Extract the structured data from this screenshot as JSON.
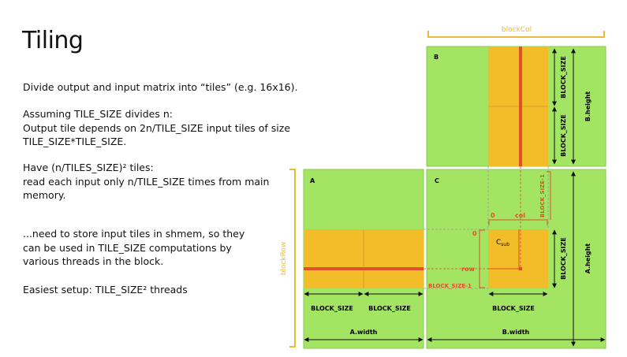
{
  "slide": {
    "title": "Tiling",
    "paragraphs": [
      [
        "Divide output and input matrix into “tiles” (e.g. 16x16)."
      ],
      [
        "Assuming TILE_SIZE divides n:",
        "Output tile depends on 2n/TILE_SIZE input tiles of size",
        "TILE_SIZE*TILE_SIZE."
      ],
      [
        "Have (n/TILES_SIZE)² tiles:",
        "read each input only n/TILE_SIZE times from main",
        "memory."
      ],
      [
        "...need to store input tiles in shmem, so they",
        "can be used in TILE_SIZE computations by",
        "various threads in the block."
      ],
      [
        "Easiest setup: TILE_SIZE² threads"
      ]
    ]
  },
  "diagram": {
    "labels": {
      "block_col": "blockCol",
      "block_row": "blockRow",
      "matrix_a": "A",
      "matrix_b": "B",
      "matrix_c": "C",
      "b_block_size_top": "BLOCK_SIZE",
      "b_block_size_bottom": "BLOCK_SIZE",
      "b_height": "B.height",
      "a_height": "A.height",
      "c_block_size_right": "BLOCK_SIZE",
      "a_block_size_1": "BLOCK_SIZE",
      "a_block_size_2": "BLOCK_SIZE",
      "c_block_size_bottom": "BLOCK_SIZE",
      "a_width": "A.width",
      "b_width": "B.width",
      "zero_top": "0",
      "col": "col",
      "block_size_minus_1_vertical": "BLOCK_SIZE-1",
      "zero_left": "0",
      "row": "row",
      "block_size_minus_1_horizontal": "BLOCK_SIZE-1",
      "csub_main": "C",
      "csub_sub": "sub"
    },
    "colors": {
      "matrix_green": "#a3e462",
      "tile_yellow": "#f2bd28",
      "tile_line": "#d8a020",
      "highlight_red": "#e0502a",
      "bracket_gold": "#e8b93a",
      "dim_black": "#111111"
    }
  }
}
